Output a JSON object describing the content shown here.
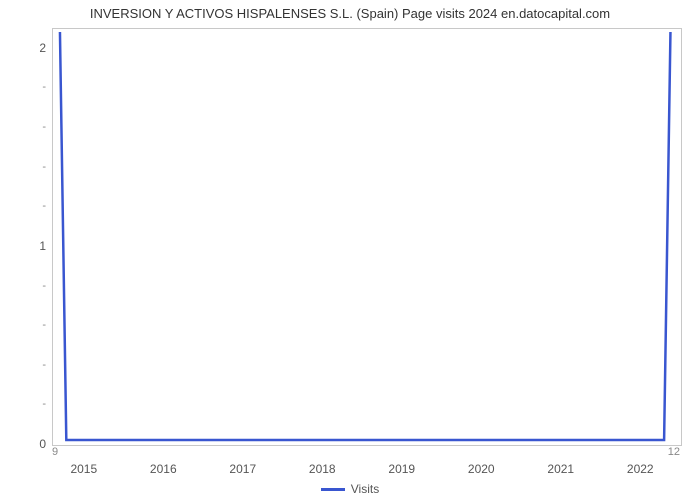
{
  "chart": {
    "type": "line",
    "title": "INVERSION Y ACTIVOS HISPALENSES S.L. (Spain) Page visits 2024 en.datocapital.com",
    "title_fontsize": 13,
    "title_color": "#333333",
    "background_color": "#ffffff",
    "grid_color": "#dcdcdc",
    "plot_border_color": "#c8c8c8",
    "x": {
      "min": 2014.6,
      "max": 2022.5,
      "ticks": [
        2015,
        2016,
        2017,
        2018,
        2019,
        2020,
        2021,
        2022
      ],
      "start_label": "9",
      "end_label": "12",
      "tick_fontsize": 12,
      "tick_color": "#555555"
    },
    "y": {
      "min": 0,
      "max": 2.1,
      "major_ticks": [
        0,
        1,
        2
      ],
      "minor_ticks_between": 4,
      "tick_fontsize": 12,
      "tick_color": "#555555"
    },
    "series": {
      "name": "Visits",
      "color": "#3956d0",
      "line_width": 2.5,
      "points": [
        {
          "x": 2014.7,
          "y": 2.08
        },
        {
          "x": 2014.78,
          "y": 0.02
        },
        {
          "x": 2022.3,
          "y": 0.02
        },
        {
          "x": 2022.38,
          "y": 2.08
        }
      ]
    },
    "legend": {
      "label": "Visits",
      "swatch_color": "#3956d0",
      "position": "bottom-center",
      "fontsize": 12
    }
  }
}
